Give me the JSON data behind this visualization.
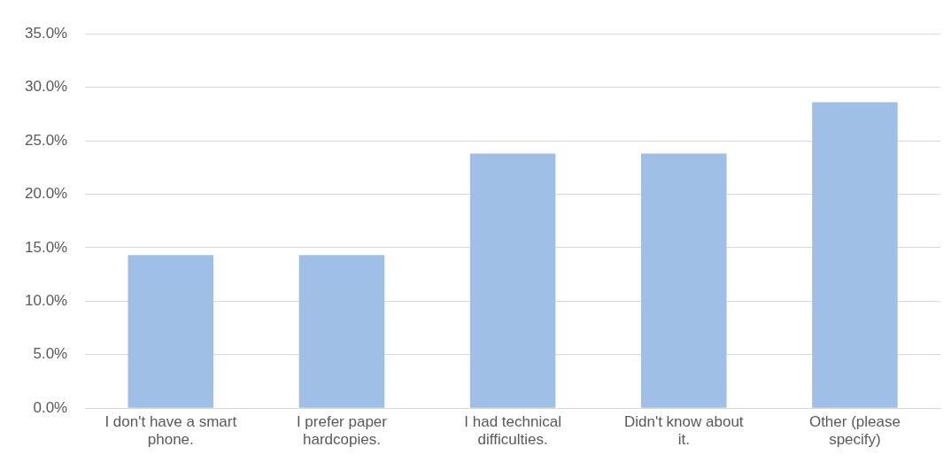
{
  "chart_data": {
    "type": "bar",
    "categories": [
      "I don't have a smart phone.",
      "I prefer paper hardcopies.",
      "I had technical difficulties.",
      "Didn't know about it.",
      "Other (please specify)"
    ],
    "values": [
      14.3,
      14.3,
      23.8,
      23.8,
      28.6
    ],
    "color": "#a0bfe6",
    "ylim": [
      0,
      35
    ],
    "yticks": [
      {
        "value": 0,
        "label": "0.0%"
      },
      {
        "value": 5,
        "label": "5.0%"
      },
      {
        "value": 10,
        "label": "10.0%"
      },
      {
        "value": 15,
        "label": "15.0%"
      },
      {
        "value": 20,
        "label": "20.0%"
      },
      {
        "value": 25,
        "label": "25.0%"
      },
      {
        "value": 30,
        "label": "30.0%"
      },
      {
        "value": 35,
        "label": "35.0%"
      }
    ],
    "grid": "y",
    "legend": false
  }
}
